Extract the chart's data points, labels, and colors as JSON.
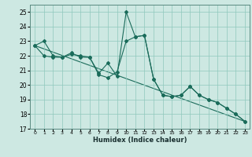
{
  "title": "",
  "xlabel": "Humidex (Indice chaleur)",
  "ylabel": "",
  "xlim": [
    -0.5,
    23.5
  ],
  "ylim": [
    17,
    25.5
  ],
  "yticks": [
    17,
    18,
    19,
    20,
    21,
    22,
    23,
    24,
    25
  ],
  "xticks": [
    0,
    1,
    2,
    3,
    4,
    5,
    6,
    7,
    8,
    9,
    10,
    11,
    12,
    13,
    14,
    15,
    16,
    17,
    18,
    19,
    20,
    21,
    22,
    23
  ],
  "background_color": "#cde8e2",
  "grid_color": "#8fc8bc",
  "line_color": "#1a6b5a",
  "line1_x": [
    0,
    1,
    2,
    3,
    4,
    5,
    6,
    7,
    8,
    9,
    10,
    11,
    12,
    13,
    14,
    15,
    16,
    17,
    18,
    19,
    20,
    21,
    22,
    23
  ],
  "line1_y": [
    22.7,
    23.0,
    22.0,
    21.9,
    22.1,
    22.0,
    21.9,
    20.7,
    20.5,
    20.9,
    23.0,
    23.3,
    23.4,
    20.4,
    19.3,
    19.2,
    19.3,
    19.9,
    19.3,
    19.0,
    18.8,
    18.4,
    18.0,
    17.5
  ],
  "line2_x": [
    0,
    1,
    2,
    3,
    4,
    5,
    6,
    7,
    8,
    9,
    10,
    11,
    12,
    13,
    14,
    15,
    16,
    17,
    18,
    19,
    20,
    21,
    22,
    23
  ],
  "line2_y": [
    22.7,
    22.0,
    21.9,
    21.9,
    22.2,
    21.9,
    21.9,
    20.8,
    21.5,
    20.6,
    25.0,
    23.3,
    23.4,
    20.4,
    19.3,
    19.2,
    19.3,
    19.9,
    19.3,
    19.0,
    18.8,
    18.4,
    18.0,
    17.5
  ],
  "line3_x": [
    0,
    23
  ],
  "line3_y": [
    22.7,
    17.5
  ]
}
